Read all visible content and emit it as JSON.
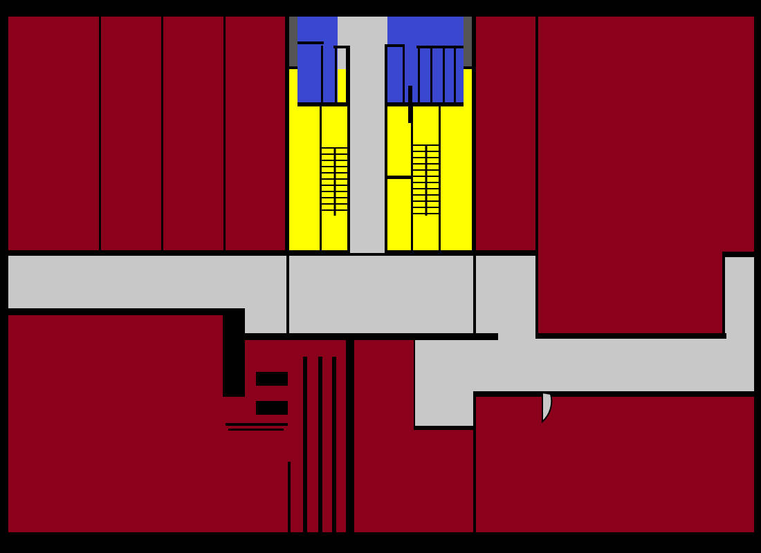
{
  "colors": {
    "room": "#8b001a",
    "corridor": "#c8c8c8",
    "stairwell": "#ffff00",
    "restroom": "#3a48d0",
    "shaft": "#555555",
    "wall": "#000000"
  },
  "legend": {
    "room": "",
    "corridor": "",
    "stairwell": "",
    "restroom": "",
    "shaft": ""
  }
}
